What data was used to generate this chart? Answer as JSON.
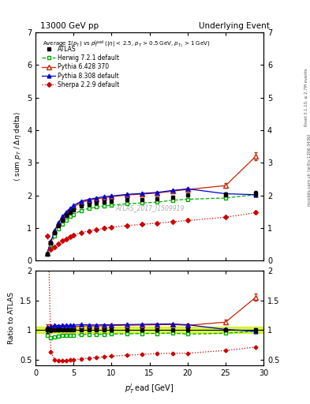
{
  "title_left": "13000 GeV pp",
  "title_right": "Underlying Event",
  "watermark": "ATLAS_2017_I1509919",
  "ylim_main": [
    0,
    7
  ],
  "ylim_ratio": [
    0.4,
    2.0
  ],
  "xlim": [
    0,
    30
  ],
  "yticks_main": [
    0,
    1,
    2,
    3,
    4,
    5,
    6,
    7
  ],
  "yticks_ratio": [
    0.5,
    1.0,
    1.5,
    2.0
  ],
  "xticks": [
    0,
    5,
    10,
    15,
    20,
    25,
    30
  ],
  "atlas_x": [
    1.5,
    2.0,
    2.5,
    3.0,
    3.5,
    4.0,
    4.5,
    5.0,
    6.0,
    7.0,
    8.0,
    9.0,
    10.0,
    12.0,
    14.0,
    16.0,
    18.0,
    20.0,
    25.0,
    29.0
  ],
  "atlas_y": [
    0.21,
    0.55,
    0.85,
    1.08,
    1.25,
    1.38,
    1.48,
    1.56,
    1.67,
    1.73,
    1.77,
    1.8,
    1.82,
    1.86,
    1.88,
    1.9,
    1.95,
    2.02,
    2.03,
    2.06
  ],
  "atlas_yerr": [
    0.01,
    0.02,
    0.02,
    0.02,
    0.02,
    0.02,
    0.02,
    0.02,
    0.02,
    0.02,
    0.02,
    0.02,
    0.02,
    0.02,
    0.02,
    0.03,
    0.04,
    0.05,
    0.06,
    0.07
  ],
  "herwig_x": [
    1.5,
    2.0,
    2.5,
    3.0,
    3.5,
    4.0,
    4.5,
    5.0,
    6.0,
    7.0,
    8.0,
    9.0,
    10.0,
    12.0,
    14.0,
    16.0,
    18.0,
    20.0,
    25.0,
    29.0
  ],
  "herwig_y": [
    0.19,
    0.48,
    0.75,
    0.97,
    1.13,
    1.25,
    1.35,
    1.42,
    1.54,
    1.6,
    1.64,
    1.67,
    1.7,
    1.74,
    1.77,
    1.79,
    1.85,
    1.88,
    1.92,
    2.02
  ],
  "pythia6_x": [
    1.5,
    2.0,
    2.5,
    3.0,
    3.5,
    4.0,
    4.5,
    5.0,
    6.0,
    7.0,
    8.0,
    9.0,
    10.0,
    12.0,
    14.0,
    16.0,
    18.0,
    20.0,
    25.0,
    29.0
  ],
  "pythia6_y": [
    0.22,
    0.58,
    0.9,
    1.14,
    1.32,
    1.46,
    1.57,
    1.65,
    1.78,
    1.85,
    1.89,
    1.93,
    1.96,
    2.01,
    2.04,
    2.07,
    2.13,
    2.18,
    2.3,
    3.2
  ],
  "pythia6_yerr": [
    0.01,
    0.02,
    0.02,
    0.02,
    0.02,
    0.02,
    0.02,
    0.02,
    0.02,
    0.02,
    0.02,
    0.02,
    0.02,
    0.02,
    0.02,
    0.03,
    0.04,
    0.05,
    0.08,
    0.12
  ],
  "pythia8_x": [
    1.5,
    2.0,
    2.5,
    3.0,
    3.5,
    4.0,
    4.5,
    5.0,
    6.0,
    7.0,
    8.0,
    9.0,
    10.0,
    12.0,
    14.0,
    16.0,
    18.0,
    20.0,
    25.0,
    29.0
  ],
  "pythia8_y": [
    0.22,
    0.58,
    0.92,
    1.16,
    1.35,
    1.49,
    1.6,
    1.69,
    1.82,
    1.88,
    1.92,
    1.96,
    1.98,
    2.03,
    2.06,
    2.09,
    2.15,
    2.2,
    2.05,
    2.02
  ],
  "sherpa_x": [
    1.5,
    2.0,
    2.5,
    3.0,
    3.5,
    4.0,
    4.5,
    5.0,
    6.0,
    7.0,
    8.0,
    9.0,
    10.0,
    12.0,
    14.0,
    16.0,
    18.0,
    20.0,
    25.0,
    29.0
  ],
  "sherpa_y": [
    0.75,
    0.35,
    0.42,
    0.52,
    0.6,
    0.67,
    0.73,
    0.78,
    0.86,
    0.91,
    0.95,
    0.99,
    1.02,
    1.07,
    1.11,
    1.15,
    1.19,
    1.23,
    1.33,
    1.47
  ],
  "atlas_band_err": 0.05,
  "band_color": "#c8f000",
  "herwig_color": "#00aa00",
  "pythia6_color": "#cc2200",
  "pythia8_color": "#0000cc",
  "sherpa_color": "#cc0000"
}
